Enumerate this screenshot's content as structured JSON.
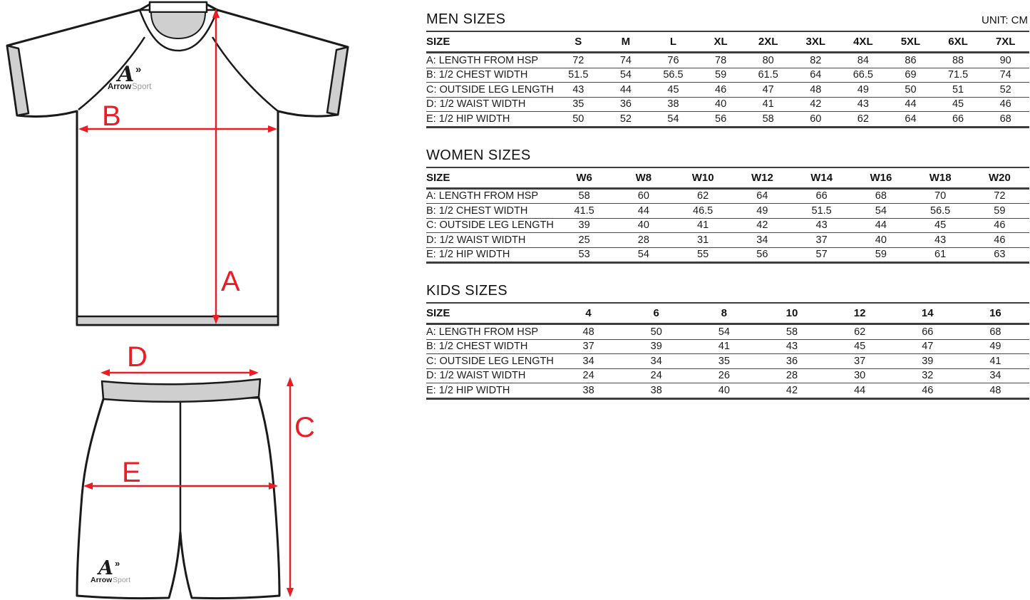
{
  "unit_label": "UNIT: CM",
  "colors": {
    "accent_red": "#ed1c24",
    "outline_black": "#1a1a1a",
    "trim_gray": "#cfcfcf",
    "rule_gray": "#3d3d3d"
  },
  "logo": {
    "glyph": "A",
    "arrow": "»",
    "name_bold": "Arrow",
    "name_light": "Sport"
  },
  "diagram_labels": {
    "a": "A",
    "b": "B",
    "c": "C",
    "d": "D",
    "e": "E"
  },
  "tables": [
    {
      "title": "MEN SIZES",
      "columns": [
        "SIZE",
        "S",
        "M",
        "L",
        "XL",
        "2XL",
        "3XL",
        "4XL",
        "5XL",
        "6XL",
        "7XL"
      ],
      "rows": [
        {
          "label": "A: LENGTH FROM HSP",
          "values": [
            72,
            74,
            76,
            78,
            80,
            82,
            84,
            86,
            88,
            90
          ]
        },
        {
          "label": "B: 1/2 CHEST WIDTH",
          "values": [
            51.5,
            54,
            56.5,
            59,
            61.5,
            64,
            66.5,
            69,
            71.5,
            74
          ]
        },
        {
          "label": "C: OUTSIDE LEG LENGTH",
          "values": [
            43,
            44,
            45,
            46,
            47,
            48,
            49,
            50,
            51,
            52
          ]
        },
        {
          "label": "D: 1/2 WAIST WIDTH",
          "values": [
            35,
            36,
            38,
            40,
            41,
            42,
            43,
            44,
            45,
            46
          ]
        },
        {
          "label": "E: 1/2 HIP WIDTH",
          "values": [
            50,
            52,
            54,
            56,
            58,
            60,
            62,
            64,
            66,
            68
          ]
        }
      ]
    },
    {
      "title": "WOMEN SIZES",
      "columns": [
        "SIZE",
        "W6",
        "W8",
        "W10",
        "W12",
        "W14",
        "W16",
        "W18",
        "W20"
      ],
      "rows": [
        {
          "label": "A: LENGTH FROM HSP",
          "values": [
            58,
            60,
            62,
            64,
            66,
            68,
            70,
            72
          ]
        },
        {
          "label": "B: 1/2 CHEST WIDTH",
          "values": [
            41.5,
            44,
            46.5,
            49,
            51.5,
            54,
            56.5,
            59
          ]
        },
        {
          "label": "C: OUTSIDE LEG LENGTH",
          "values": [
            39,
            40,
            41,
            42,
            43,
            44,
            45,
            46
          ]
        },
        {
          "label": "D: 1/2 WAIST WIDTH",
          "values": [
            25,
            28,
            31,
            34,
            37,
            40,
            43,
            46
          ]
        },
        {
          "label": "E: 1/2 HIP WIDTH",
          "values": [
            53,
            54,
            55,
            56,
            57,
            59,
            61,
            63
          ]
        }
      ]
    },
    {
      "title": "KIDS SIZES",
      "columns": [
        "SIZE",
        "4",
        "6",
        "8",
        "10",
        "12",
        "14",
        "16"
      ],
      "rows": [
        {
          "label": "A: LENGTH FROM HSP",
          "values": [
            48,
            50,
            54,
            58,
            62,
            66,
            68
          ]
        },
        {
          "label": "B: 1/2 CHEST WIDTH",
          "values": [
            37,
            39,
            41,
            43,
            45,
            47,
            49
          ]
        },
        {
          "label": "C: OUTSIDE LEG LENGTH",
          "values": [
            34,
            34,
            35,
            36,
            37,
            39,
            41
          ]
        },
        {
          "label": "D: 1/2 WAIST WIDTH",
          "values": [
            24,
            24,
            26,
            28,
            30,
            32,
            34
          ]
        },
        {
          "label": "E: 1/2 HIP WIDTH",
          "values": [
            38,
            38,
            40,
            42,
            44,
            46,
            48
          ]
        }
      ]
    }
  ]
}
